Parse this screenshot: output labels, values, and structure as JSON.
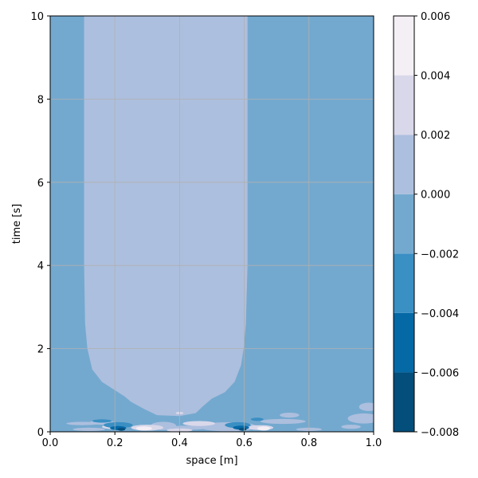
{
  "chart_data": {
    "type": "heatmap",
    "plot_style": "filled contour",
    "title": "",
    "xlabel": "space [m]",
    "ylabel": "time [s]",
    "xlim": [
      0.0,
      1.0
    ],
    "ylim": [
      0,
      10
    ],
    "x_ticks": [
      0.0,
      0.2,
      0.4,
      0.6,
      0.8,
      1.0
    ],
    "x_tick_labels": [
      "0.0",
      "0.2",
      "0.4",
      "0.6",
      "0.8",
      "1.0"
    ],
    "y_ticks": [
      0,
      2,
      4,
      6,
      8,
      10
    ],
    "y_tick_labels": [
      "0",
      "2",
      "4",
      "6",
      "8",
      "10"
    ],
    "grid": true,
    "colorbar": {
      "levels": [
        -0.008,
        -0.006,
        -0.004,
        -0.002,
        0.0,
        0.002,
        0.004,
        0.006
      ],
      "tick_labels": [
        "−0.008",
        "−0.006",
        "−0.004",
        "−0.002",
        "0.000",
        "0.002",
        "0.004",
        "0.006"
      ],
      "band_colors": [
        "#034e7b",
        "#0569a6",
        "#3a8fc3",
        "#74a9cf",
        "#adbfde",
        "#d9d8ea",
        "#f4eef5"
      ]
    },
    "regions": {
      "background_band": "-0.002 to 0.000",
      "central_plateau": {
        "band": "0.000 to 0.002",
        "x_range_late_time": [
          0.105,
          0.61
        ],
        "note": "plateau narrows toward x≈0.3 to 0.45 near t≈0.4"
      },
      "early_time_features": [
        {
          "x": 0.22,
          "t": 0.1,
          "band": "-0.008 to -0.006"
        },
        {
          "x": 0.29,
          "t": 0.1,
          "band": "0.004 to 0.006"
        },
        {
          "x": 0.59,
          "t": 0.1,
          "band": "-0.008 to -0.006"
        },
        {
          "x": 0.66,
          "t": 0.1,
          "band": "0.004 to 0.006"
        },
        {
          "x": 0.97,
          "t": 0.5,
          "band": "0.000 to 0.002"
        }
      ]
    }
  }
}
